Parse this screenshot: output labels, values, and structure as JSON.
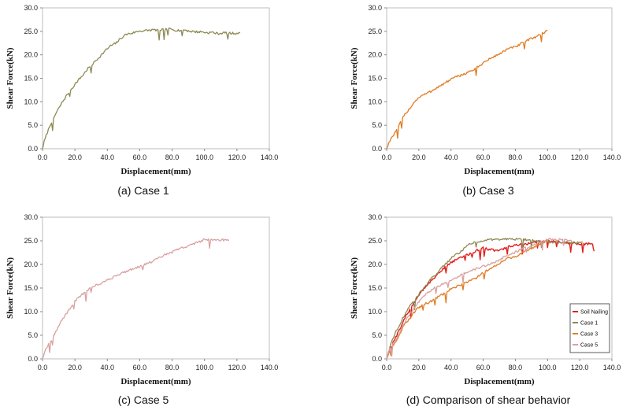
{
  "chart_data": [
    {
      "type": "line",
      "caption": "(a)  Case  1",
      "xlabel": "Displacement(mm)",
      "ylabel": "Shear Force(kN)",
      "xlim": [
        0,
        140
      ],
      "ylim": [
        0,
        30
      ],
      "xticks": [
        "0.0",
        "20.0",
        "40.0",
        "60.0",
        "80.0",
        "100.0",
        "120.0",
        "140.0"
      ],
      "yticks": [
        "0.0",
        "5.0",
        "10.0",
        "15.0",
        "20.0",
        "25.0",
        "30.0"
      ],
      "grid": false,
      "series": [
        {
          "color": "#8c8a55",
          "x": [
            0,
            1,
            3,
            5,
            8,
            10,
            12,
            15,
            18,
            20,
            22,
            25,
            28,
            30,
            33,
            35,
            38,
            40,
            42,
            45,
            48,
            50,
            52,
            55,
            58,
            60,
            62,
            65,
            68,
            70,
            72,
            75,
            78,
            80,
            82,
            85,
            88,
            90,
            92,
            95,
            98,
            100,
            102,
            105,
            108,
            110,
            112,
            115,
            118,
            120,
            122
          ],
          "y": [
            0,
            1.5,
            3.5,
            5.3,
            7.3,
            8.6,
            9.8,
            11.4,
            12.8,
            13.7,
            14.6,
            15.7,
            17.1,
            17.7,
            18.8,
            19.5,
            20.6,
            21.3,
            21.9,
            22.4,
            23.4,
            24.0,
            24.4,
            24.6,
            24.9,
            25.1,
            25.1,
            25.2,
            25.3,
            25.3,
            25.3,
            25.4,
            25.5,
            25.4,
            25.3,
            25.2,
            25.3,
            25.1,
            25.0,
            24.9,
            24.9,
            24.8,
            24.7,
            24.8,
            24.5,
            24.6,
            24.7,
            24.6,
            24.6,
            24.6,
            24.7
          ]
        }
      ]
    },
    {
      "type": "line",
      "caption": "(b)  Case  3",
      "xlabel": "Displacement(mm)",
      "ylabel": "Shear Force(kN)",
      "xlim": [
        0,
        140
      ],
      "ylim": [
        0,
        30
      ],
      "xticks": [
        "0.0",
        "20.0",
        "40.0",
        "60.0",
        "80.0",
        "100.0",
        "120.0",
        "140.0"
      ],
      "yticks": [
        "0.0",
        "5.0",
        "10.0",
        "15.0",
        "20.0",
        "25.0",
        "30.0"
      ],
      "grid": false,
      "series": [
        {
          "color": "#e07b22",
          "x": [
            0,
            2,
            5,
            8,
            10,
            12,
            15,
            18,
            20,
            22,
            25,
            28,
            30,
            35,
            40,
            45,
            50,
            55,
            60,
            65,
            70,
            75,
            80,
            85,
            90,
            93,
            95,
            98,
            100
          ],
          "y": [
            0,
            1.8,
            3.3,
            5.2,
            6.6,
            7.6,
            8.9,
            10.3,
            10.9,
            11.3,
            11.8,
            12.3,
            12.8,
            13.7,
            14.8,
            15.5,
            16.2,
            17.0,
            18.3,
            19.3,
            20.2,
            21.2,
            21.7,
            22.6,
            23.5,
            23.9,
            24.3,
            24.8,
            25.2
          ]
        }
      ]
    },
    {
      "type": "line",
      "caption": "(c)  Case  5",
      "xlabel": "Displacement(mm)",
      "ylabel": "Shear Force(kN)",
      "xlim": [
        0,
        140
      ],
      "ylim": [
        0,
        30
      ],
      "xticks": [
        "0.0",
        "20.0",
        "40.0",
        "60.0",
        "80.0",
        "100.0",
        "120.0",
        "140.0"
      ],
      "yticks": [
        "0.0",
        "5.0",
        "10.0",
        "15.0",
        "20.0",
        "25.0",
        "30.0"
      ],
      "grid": false,
      "series": [
        {
          "color": "#d9a0a0",
          "x": [
            0,
            2,
            5,
            8,
            10,
            12,
            15,
            18,
            20,
            22,
            25,
            28,
            30,
            35,
            40,
            45,
            50,
            55,
            60,
            65,
            70,
            75,
            80,
            85,
            90,
            95,
            98,
            100,
            105,
            110,
            113,
            115
          ],
          "y": [
            0,
            2.2,
            3.6,
            5.6,
            7.0,
            8.2,
            9.8,
            11.2,
            12.2,
            13.0,
            13.8,
            14.6,
            15.1,
            15.9,
            16.6,
            17.6,
            18.3,
            19.0,
            19.6,
            20.2,
            21.0,
            21.9,
            22.6,
            23.4,
            23.9,
            24.6,
            25.0,
            25.3,
            25.3,
            25.2,
            25.2,
            25.0
          ]
        }
      ]
    },
    {
      "type": "line",
      "caption": "(d)  Comparison  of  shear  behavior",
      "xlabel": "Displacement(mm)",
      "ylabel": "Shear Force(kN)",
      "xlim": [
        0,
        140
      ],
      "ylim": [
        0,
        30
      ],
      "xticks": [
        "0.0",
        "20.0",
        "40.0",
        "60.0",
        "80.0",
        "100.0",
        "120.0",
        "140.0"
      ],
      "yticks": [
        "0.0",
        "5.0",
        "10.0",
        "15.0",
        "20.0",
        "25.0",
        "30.0"
      ],
      "grid": false,
      "legend": "bottom-right",
      "series": [
        {
          "name": "Soil Nailing",
          "color": "#e0201c",
          "x": [
            0,
            2,
            5,
            8,
            10,
            12,
            15,
            18,
            20,
            25,
            30,
            35,
            40,
            45,
            50,
            55,
            60,
            65,
            70,
            75,
            80,
            85,
            90,
            95,
            100,
            105,
            110,
            115,
            120,
            125,
            128,
            129
          ],
          "y": [
            0,
            2.0,
            4.2,
            6.2,
            7.7,
            9.1,
            10.8,
            12.5,
            13.6,
            15.6,
            17.4,
            19.1,
            20.4,
            21.4,
            22.0,
            22.8,
            23.5,
            23.1,
            22.9,
            23.7,
            24.1,
            24.2,
            24.5,
            24.8,
            25.1,
            24.9,
            24.7,
            24.5,
            24.2,
            24.4,
            24.2,
            22.8
          ]
        },
        {
          "name": "Case 1",
          "color": "#8c8a55",
          "x": [
            0,
            1,
            3,
            5,
            8,
            10,
            12,
            15,
            18,
            20,
            22,
            25,
            28,
            30,
            33,
            35,
            38,
            40,
            42,
            45,
            48,
            50,
            52,
            55,
            58,
            60,
            62,
            65,
            68,
            70,
            72,
            75,
            78,
            80,
            82,
            85,
            88,
            90,
            92,
            95,
            98,
            100,
            102,
            105,
            108,
            110,
            112,
            115,
            118,
            120,
            122
          ],
          "y": [
            0,
            1.5,
            3.5,
            5.3,
            7.3,
            8.6,
            9.8,
            11.4,
            12.8,
            13.7,
            14.6,
            15.7,
            17.1,
            17.7,
            18.8,
            19.5,
            20.6,
            21.3,
            21.9,
            22.4,
            23.4,
            24.0,
            24.4,
            24.6,
            24.9,
            25.1,
            25.1,
            25.2,
            25.3,
            25.3,
            25.3,
            25.4,
            25.5,
            25.4,
            25.3,
            25.2,
            25.3,
            25.1,
            25.0,
            24.9,
            24.9,
            24.8,
            24.7,
            24.8,
            24.5,
            24.6,
            24.7,
            24.6,
            24.6,
            24.6,
            24.7
          ]
        },
        {
          "name": "Case 3",
          "color": "#e07b22",
          "x": [
            0,
            2,
            5,
            8,
            10,
            12,
            15,
            18,
            20,
            22,
            25,
            28,
            30,
            35,
            40,
            45,
            50,
            55,
            60,
            65,
            70,
            75,
            80,
            85,
            90,
            93,
            95,
            98,
            100
          ],
          "y": [
            0,
            1.8,
            3.3,
            5.2,
            6.6,
            7.6,
            8.9,
            10.3,
            10.9,
            11.3,
            11.8,
            12.3,
            12.8,
            13.7,
            14.8,
            15.5,
            16.2,
            17.0,
            18.3,
            19.3,
            20.2,
            21.2,
            21.7,
            22.6,
            23.5,
            23.9,
            24.3,
            24.8,
            25.2
          ]
        },
        {
          "name": "Case 5",
          "color": "#d9a0a0",
          "x": [
            0,
            2,
            5,
            8,
            10,
            12,
            15,
            18,
            20,
            22,
            25,
            28,
            30,
            35,
            40,
            45,
            50,
            55,
            60,
            65,
            70,
            75,
            80,
            85,
            90,
            95,
            98,
            100,
            105,
            110,
            113,
            115
          ],
          "y": [
            0,
            2.2,
            3.6,
            5.6,
            7.0,
            8.2,
            9.8,
            11.2,
            12.2,
            13.0,
            13.8,
            14.6,
            15.1,
            15.9,
            16.6,
            17.6,
            18.3,
            19.0,
            19.6,
            20.2,
            21.0,
            21.9,
            22.6,
            23.4,
            23.9,
            24.6,
            25.0,
            25.3,
            25.3,
            25.2,
            25.2,
            25.0
          ]
        }
      ]
    }
  ]
}
